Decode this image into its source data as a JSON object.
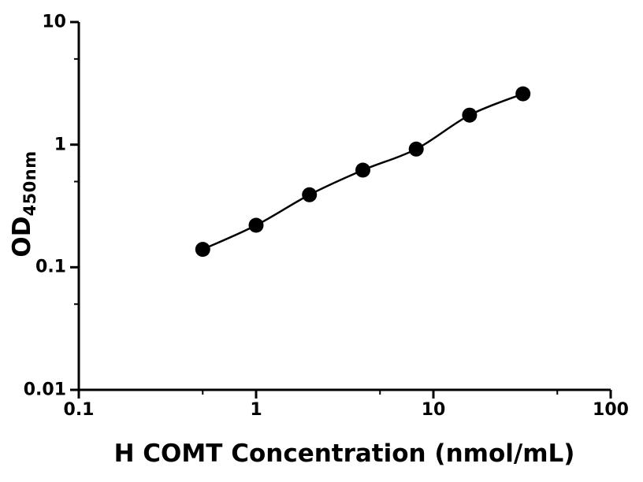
{
  "figure": {
    "background_color": "#ffffff",
    "text_color": "#000000"
  },
  "chart_data": {
    "type": "scatter",
    "title": "",
    "xlabel": "H COMT Concentration (nmol/mL)",
    "ylabel_main": "OD",
    "ylabel_sub": "450nm",
    "x_scale": "log",
    "y_scale": "log",
    "xlim": [
      0.1,
      100
    ],
    "ylim": [
      0.01,
      10
    ],
    "x_ticks": [
      0.1,
      1,
      10,
      100
    ],
    "x_tick_labels": [
      "0.1",
      "1",
      "10",
      "100"
    ],
    "x_minor_ticks": [
      0.5,
      5,
      50
    ],
    "y_ticks": [
      0.01,
      0.1,
      1,
      10
    ],
    "y_tick_labels": [
      "0.01",
      "0.1",
      "1",
      "10"
    ],
    "y_minor_ticks": [
      0.05,
      0.5,
      5
    ],
    "grid": false,
    "legend": "none",
    "fit_line": true,
    "axis_color": "#000000",
    "line_color": "#000000",
    "marker_color": "#000000",
    "marker_radius": 9.5,
    "x": [
      0.5,
      1,
      2,
      4,
      8,
      16,
      32
    ],
    "y": [
      0.14,
      0.22,
      0.39,
      0.62,
      0.92,
      1.74,
      2.6
    ]
  }
}
